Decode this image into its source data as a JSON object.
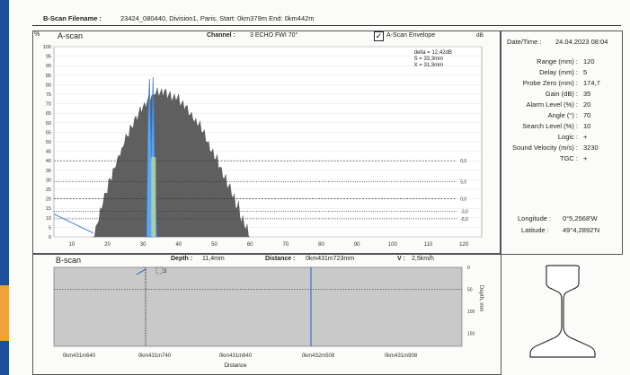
{
  "header": {
    "filename_label": "B-Scan Filename :",
    "filename_value": "23424_080440, Division1, Paris, Start: 0km379m  End: 0km442m"
  },
  "ascan": {
    "title": "A-scan",
    "y_unit": "%",
    "db_unit": "dB",
    "channel_label": "Channel :",
    "channel_value": "3 ECHO FWI 70°",
    "envelope_label": "A-Scan Envelope",
    "envelope_checked": true,
    "readout": [
      "delta = 12,42dB",
      "S = 33,3mm",
      "X = 31,3mm"
    ],
    "y_ticks": [
      "100",
      "95",
      "90",
      "85",
      "80",
      "75",
      "70",
      "65",
      "60",
      "55",
      "50",
      "45",
      "40",
      "35",
      "30",
      "25",
      "20",
      "15",
      "10",
      "5",
      "0"
    ],
    "x_ticks": [
      "10",
      "20",
      "30",
      "40",
      "50",
      "60",
      "70",
      "80",
      "90",
      "100",
      "110",
      "120"
    ],
    "db_marks": [
      "0,0",
      "5,0",
      "0,0",
      "-3,0",
      "-6,0"
    ]
  },
  "bscan": {
    "title": "B-scan",
    "depth_label": "Depth :",
    "depth_value": "11,4mm",
    "distance_label": "Distance :",
    "distance_value": "0km431m723mm",
    "v_label": "V :",
    "v_value": "2,5km/h",
    "marker_label": "3",
    "y_axis_label": "Depth, mm",
    "y_ticks": [
      "0",
      "50",
      "100",
      "150"
    ],
    "x_ticks": [
      "0km431m640",
      "0km431m740",
      "0km431m840",
      "0km432m508",
      "0km431m908"
    ],
    "x_axis_label": "Distance"
  },
  "params": {
    "datetime_label": "Date/Time :",
    "datetime_value": "24.04.2023 08:04",
    "rows": [
      {
        "label": "Range (mm) :",
        "value": "120"
      },
      {
        "label": "Delay (mm) :",
        "value": "5"
      },
      {
        "label": "Probe Zero (mm) :",
        "value": "174,7"
      },
      {
        "label": "Gain (dB) :",
        "value": "35"
      },
      {
        "label": "Alarm Level (%) :",
        "value": "20"
      },
      {
        "label": "Angle (°) :",
        "value": "70"
      },
      {
        "label": "Search Level (%) :",
        "value": "10"
      },
      {
        "label": "Logic :",
        "value": "+"
      },
      {
        "label": "Sound Velocity (m/s) :",
        "value": "3230"
      },
      {
        "label": "TGC :",
        "value": "+"
      }
    ],
    "longitude_label": "Longitude :",
    "longitude_value": "0°5,2568'W",
    "latitude_label": "Latitude :",
    "latitude_value": "49°4,2892'N"
  },
  "colors": {
    "envelope": "#5f5f5f",
    "signal": "#3f7fd6",
    "gate": "#1f5fcf",
    "bscan_bg": "#c9c9c9"
  }
}
